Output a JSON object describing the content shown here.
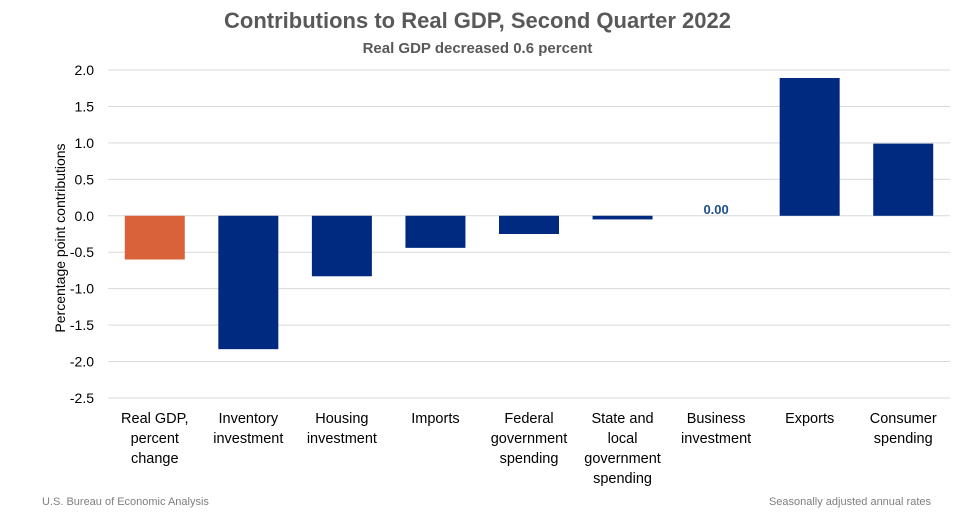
{
  "chart_data": {
    "type": "bar",
    "title": "Contributions to Real GDP, Second Quarter 2022",
    "subtitle": "Real GDP decreased 0.6 percent",
    "ylabel": "Percentage point contributions",
    "xlabel": "",
    "ylim": [
      -2.5,
      2.0
    ],
    "yticks": [
      "2.0",
      "1.5",
      "1.0",
      "0.5",
      "0.0",
      "-0.5",
      "-1.0",
      "-1.5",
      "-2.0",
      "-2.5"
    ],
    "grid": true,
    "categories": [
      "Real GDP,\npercent\nchange",
      "Inventory\ninvestment",
      "Housing\ninvestment",
      "Imports",
      "Federal\ngovernment\nspending",
      "State and\nlocal\ngovernment\nspending",
      "Business\ninvestment",
      "Exports",
      "Consumer\nspending"
    ],
    "values": [
      -0.6,
      -1.83,
      -0.83,
      -0.44,
      -0.25,
      -0.05,
      0.0,
      1.89,
      0.99
    ],
    "bar_colors": [
      "#d9623b",
      "#002a7f",
      "#002a7f",
      "#002a7f",
      "#002a7f",
      "#002a7f",
      "#002a7f",
      "#002a7f",
      "#002a7f"
    ],
    "data_labels": [
      {
        "category_index": 6,
        "text": "0.00"
      }
    ]
  },
  "footer": {
    "source": "U.S. Bureau of Economic Analysis",
    "note": "Seasonally adjusted annual rates"
  }
}
